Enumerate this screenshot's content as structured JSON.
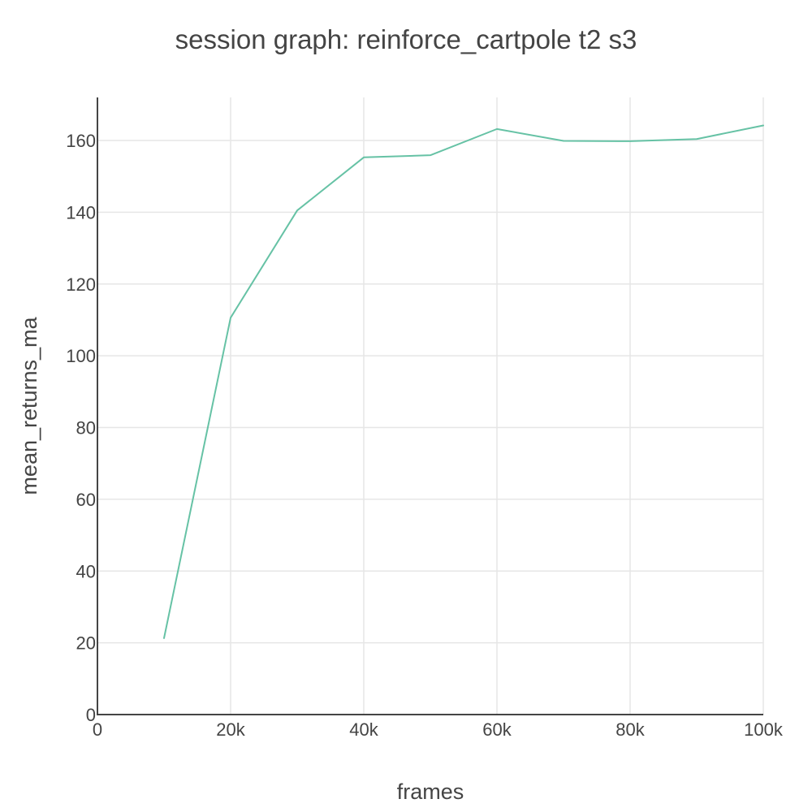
{
  "chart_data": {
    "type": "line",
    "title": "session graph: reinforce_cartpole t2 s3",
    "xlabel": "frames",
    "ylabel": "mean_returns_ma",
    "xlim": [
      0,
      100000
    ],
    "ylim": [
      0,
      172
    ],
    "x_ticks": [
      {
        "value": 0,
        "label": "0"
      },
      {
        "value": 20000,
        "label": "20k"
      },
      {
        "value": 40000,
        "label": "40k"
      },
      {
        "value": 60000,
        "label": "60k"
      },
      {
        "value": 80000,
        "label": "80k"
      },
      {
        "value": 100000,
        "label": "100k"
      }
    ],
    "y_ticks": [
      {
        "value": 0,
        "label": "0"
      },
      {
        "value": 20,
        "label": "20"
      },
      {
        "value": 40,
        "label": "40"
      },
      {
        "value": 60,
        "label": "60"
      },
      {
        "value": 80,
        "label": "80"
      },
      {
        "value": 100,
        "label": "100"
      },
      {
        "value": 120,
        "label": "120"
      },
      {
        "value": 140,
        "label": "140"
      },
      {
        "value": 160,
        "label": "160"
      }
    ],
    "grid": true,
    "legend": "none",
    "series": [
      {
        "color": "#66c2a5",
        "x": [
          10000,
          20000,
          30000,
          40000,
          50000,
          60000,
          70000,
          80000,
          90000,
          100000
        ],
        "y": [
          21.3,
          110.6,
          140.5,
          155.3,
          155.9,
          163.2,
          159.9,
          159.8,
          160.4,
          164.2
        ]
      }
    ]
  }
}
